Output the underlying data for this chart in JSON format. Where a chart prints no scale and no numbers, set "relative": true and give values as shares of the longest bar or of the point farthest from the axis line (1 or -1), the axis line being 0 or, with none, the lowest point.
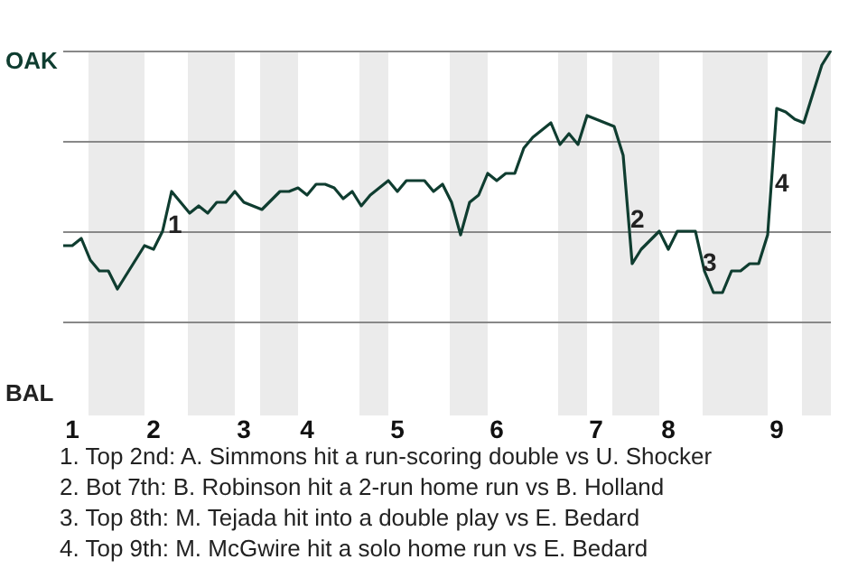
{
  "chart_data": {
    "type": "line",
    "relative": true,
    "categories": [
      null,
      "1",
      null,
      null,
      null,
      null,
      null,
      null,
      null,
      null,
      "2",
      null,
      null,
      null,
      null,
      null,
      null,
      null,
      null,
      null,
      "3",
      null,
      null,
      null,
      null,
      null,
      null,
      "4",
      null,
      null,
      null,
      null,
      null,
      null,
      null,
      null,
      null,
      "5",
      null,
      null,
      null,
      null,
      null,
      null,
      null,
      null,
      null,
      null,
      "6",
      null,
      null,
      null,
      null,
      null,
      null,
      null,
      null,
      null,
      null,
      "7",
      null,
      null,
      null,
      null,
      null,
      null,
      null,
      "8",
      null,
      null,
      null,
      null,
      null,
      null,
      null,
      null,
      null,
      null,
      null,
      "9",
      null,
      null,
      null,
      null,
      null,
      null
    ],
    "series": [
      {
        "color": "#0f3d30",
        "values": [
          -0.08,
          -0.08,
          -0.04,
          -0.16,
          -0.22,
          -0.22,
          -0.32,
          -0.24,
          -0.16,
          -0.08,
          -0.1,
          0,
          0.22,
          0.16,
          0.1,
          0.14,
          0.1,
          0.16,
          0.16,
          0.22,
          0.16,
          0.14,
          0.12,
          0.17,
          0.22,
          0.22,
          0.24,
          0.2,
          0.26,
          0.26,
          0.24,
          0.18,
          0.22,
          0.14,
          0.2,
          0.24,
          0.28,
          0.22,
          0.28,
          0.28,
          0.28,
          0.22,
          0.26,
          0.16,
          -0.02,
          0.16,
          0.2,
          0.32,
          0.28,
          0.32,
          0.32,
          0.46,
          0.52,
          0.56,
          0.6,
          0.48,
          0.54,
          0.48,
          0.64,
          0.62,
          0.6,
          0.58,
          0.42,
          -0.18,
          -0.1,
          -0.05,
          0,
          -0.1,
          0,
          0,
          0,
          -0.22,
          -0.34,
          -0.34,
          -0.22,
          -0.22,
          -0.18,
          -0.18,
          -0.02,
          0.68,
          0.66,
          0.62,
          0.6,
          0.76,
          0.92,
          1
        ]
      }
    ],
    "legend": false,
    "marker": "none",
    "line_style": "solid",
    "tick_labels": "x",
    "ref_lines": [
      {
        "axis": "y",
        "value": 1,
        "color": "#888888"
      },
      {
        "axis": "y",
        "value": 0.5,
        "color": "#888888"
      },
      {
        "axis": "y",
        "value": 0,
        "color": "#888888"
      },
      {
        "axis": "y",
        "value": -0.5,
        "color": "#888888"
      }
    ],
    "annotations": [
      "OAK",
      "BAL",
      "1",
      "2",
      "3",
      "4",
      "1. Top 2nd: A. Simmons hit a run-scoring double vs U. Shocker",
      "2. Bot 7th: B. Robinson hit a 2-run home run vs B. Holland",
      "3. Top 8th: M. Tejada hit into a double play vs E. Bedard",
      "4. Top 9th: M. McGwire hit a solo home run vs E. Bedard"
    ]
  }
}
